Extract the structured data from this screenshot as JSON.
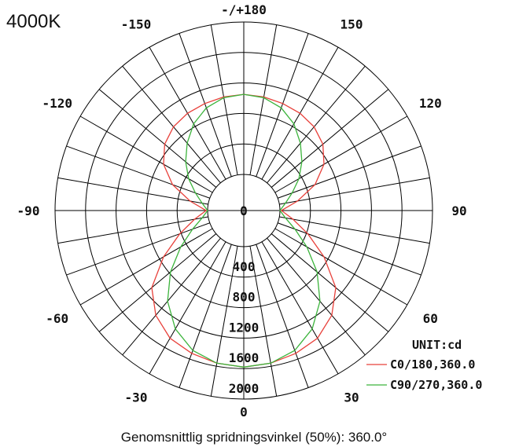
{
  "title": "4000K",
  "caption": "Genomsnittlig spridningsvinkel (50%): 360.0°",
  "chart_data": {
    "type": "polar-line",
    "unit_label": "UNIT:cd",
    "radial_ticks": [
      "0",
      "400",
      "800",
      "1200",
      "1600",
      "2000"
    ],
    "radial_range": [
      0,
      2000
    ],
    "angle_labels": [
      {
        "deg": 180,
        "text": "-/+180"
      },
      {
        "deg": 150,
        "text": "150"
      },
      {
        "deg": -150,
        "text": "-150"
      },
      {
        "deg": 120,
        "text": "120"
      },
      {
        "deg": -120,
        "text": "-120"
      },
      {
        "deg": 90,
        "text": "90"
      },
      {
        "deg": -90,
        "text": "-90"
      },
      {
        "deg": 60,
        "text": "60"
      },
      {
        "deg": -60,
        "text": "-60"
      },
      {
        "deg": 30,
        "text": "30"
      },
      {
        "deg": -30,
        "text": "-30"
      },
      {
        "deg": 0,
        "text": "0"
      }
    ],
    "grid": true,
    "grid_spoke_step_deg": 10,
    "series": [
      {
        "name": "C0/180,360.0",
        "color": "#e8403a",
        "angles": [
          0,
          10,
          20,
          30,
          40,
          50,
          60,
          70,
          80,
          90,
          100,
          110,
          120,
          130,
          140,
          150,
          160,
          170,
          180
        ],
        "values": [
          1580,
          1560,
          1520,
          1460,
          1320,
          1100,
          740,
          420,
          180,
          20,
          240,
          520,
          740,
          880,
          960,
          1000,
          1020,
          1040,
          1050
        ]
      },
      {
        "name": "C90/270,360.0",
        "color": "#3cb43c",
        "angles": [
          0,
          10,
          20,
          30,
          40,
          50,
          60,
          70,
          80,
          90,
          100,
          110,
          120,
          130,
          140,
          150,
          160,
          170,
          180
        ],
        "values": [
          1580,
          1560,
          1480,
          1320,
          1080,
          780,
          480,
          240,
          80,
          0,
          80,
          200,
          360,
          520,
          680,
          840,
          960,
          1030,
          1050
        ]
      }
    ]
  }
}
